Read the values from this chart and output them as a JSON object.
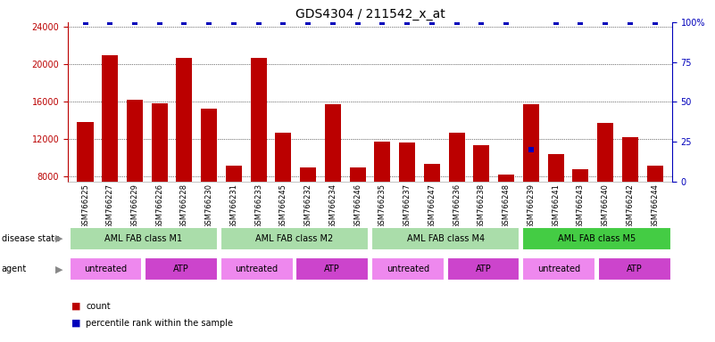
{
  "title": "GDS4304 / 211542_x_at",
  "samples": [
    "GSM766225",
    "GSM766227",
    "GSM766229",
    "GSM766226",
    "GSM766228",
    "GSM766230",
    "GSM766231",
    "GSM766233",
    "GSM766245",
    "GSM766232",
    "GSM766234",
    "GSM766246",
    "GSM766235",
    "GSM766237",
    "GSM766247",
    "GSM766236",
    "GSM766238",
    "GSM766248",
    "GSM766239",
    "GSM766241",
    "GSM766243",
    "GSM766240",
    "GSM766242",
    "GSM766244"
  ],
  "counts": [
    13800,
    21000,
    16200,
    15800,
    20700,
    15300,
    9200,
    20700,
    12700,
    9000,
    15700,
    9000,
    11700,
    11600,
    9400,
    12700,
    11400,
    8200,
    15700,
    10400,
    8800,
    13700,
    12200,
    9200
  ],
  "percentiles": [
    100,
    100,
    100,
    100,
    100,
    100,
    100,
    100,
    100,
    100,
    100,
    100,
    100,
    100,
    100,
    100,
    100,
    100,
    20,
    100,
    100,
    100,
    100,
    100
  ],
  "ylim_left": [
    7500,
    24500
  ],
  "ylim_right": [
    0,
    100
  ],
  "yticks_left": [
    8000,
    12000,
    16000,
    20000,
    24000
  ],
  "yticks_right": [
    0,
    25,
    50,
    75,
    100
  ],
  "yticklabels_right": [
    "0",
    "25",
    "50",
    "75",
    "100%"
  ],
  "bar_color": "#bb0000",
  "dot_color": "#0000bb",
  "disease_state_groups": [
    {
      "label": "AML FAB class M1",
      "start": 0,
      "end": 6,
      "color": "#aaddaa"
    },
    {
      "label": "AML FAB class M2",
      "start": 6,
      "end": 12,
      "color": "#aaddaa"
    },
    {
      "label": "AML FAB class M4",
      "start": 12,
      "end": 18,
      "color": "#aaddaa"
    },
    {
      "label": "AML FAB class M5",
      "start": 18,
      "end": 24,
      "color": "#44cc44"
    }
  ],
  "agent_groups": [
    {
      "label": "untreated",
      "start": 0,
      "end": 3,
      "color": "#ee88ee"
    },
    {
      "label": "ATP",
      "start": 3,
      "end": 6,
      "color": "#cc44cc"
    },
    {
      "label": "untreated",
      "start": 6,
      "end": 9,
      "color": "#ee88ee"
    },
    {
      "label": "ATP",
      "start": 9,
      "end": 12,
      "color": "#cc44cc"
    },
    {
      "label": "untreated",
      "start": 12,
      "end": 15,
      "color": "#ee88ee"
    },
    {
      "label": "ATP",
      "start": 15,
      "end": 18,
      "color": "#cc44cc"
    },
    {
      "label": "untreated",
      "start": 18,
      "end": 21,
      "color": "#ee88ee"
    },
    {
      "label": "ATP",
      "start": 21,
      "end": 24,
      "color": "#cc44cc"
    }
  ],
  "disease_state_label": "disease state",
  "agent_label": "agent",
  "legend_count": "count",
  "legend_percentile": "percentile rank within the sample",
  "tick_fontsize": 7,
  "title_fontsize": 10,
  "annotation_fontsize": 7,
  "sample_fontsize": 6
}
